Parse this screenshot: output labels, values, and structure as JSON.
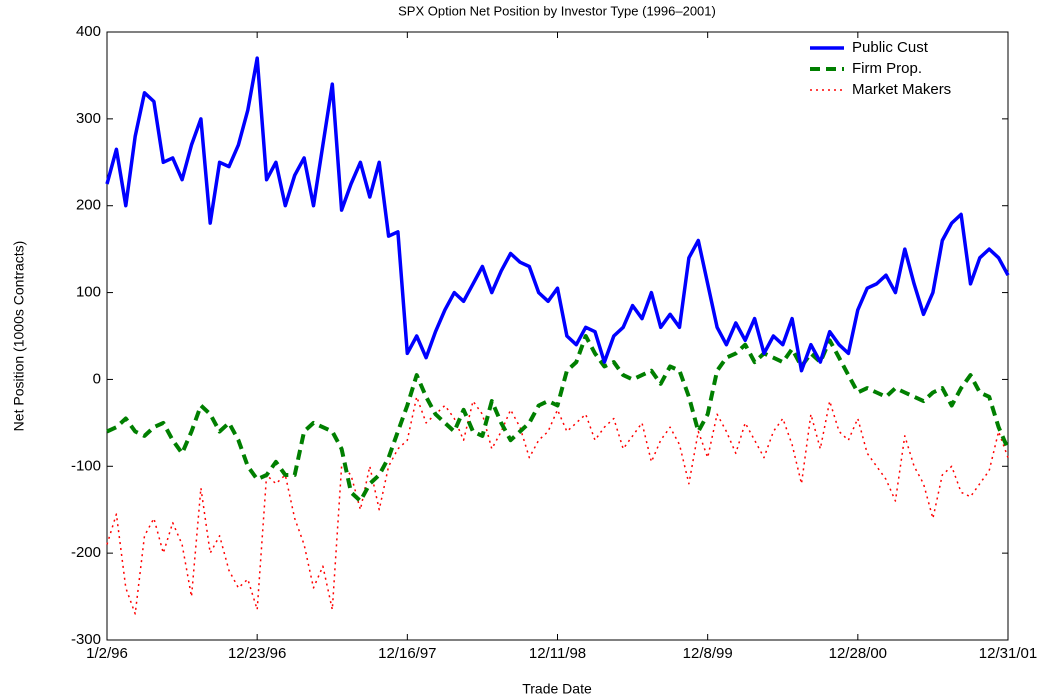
{
  "chart_data": {
    "type": "line",
    "title": "SPX Option Net Position by Investor Type (1996–2001)",
    "x_label": "Trade Date",
    "y_label": "Net Position (1000s Contracts)",
    "categories": [
      "1/2/96",
      null,
      null,
      null,
      null,
      null,
      null,
      null,
      null,
      null,
      null,
      null,
      null,
      null,
      null,
      null,
      "12/23/96",
      null,
      null,
      null,
      null,
      null,
      null,
      null,
      null,
      null,
      null,
      null,
      null,
      null,
      null,
      null,
      "12/16/97",
      null,
      null,
      null,
      null,
      null,
      null,
      null,
      null,
      null,
      null,
      null,
      null,
      null,
      null,
      null,
      "12/11/98",
      null,
      null,
      null,
      null,
      null,
      null,
      null,
      null,
      null,
      null,
      null,
      null,
      null,
      null,
      null,
      "12/8/99",
      null,
      null,
      null,
      null,
      null,
      null,
      null,
      null,
      null,
      null,
      null,
      null,
      null,
      null,
      null,
      "12/28/00",
      null,
      null,
      null,
      null,
      null,
      null,
      null,
      null,
      null,
      null,
      null,
      null,
      null,
      null,
      null,
      "12/31/01"
    ],
    "series": [
      {
        "name": "Public Cust",
        "color": "#0000ff",
        "linestyle": "solid",
        "values": [
          225,
          265,
          200,
          280,
          330,
          320,
          250,
          255,
          230,
          270,
          300,
          180,
          250,
          245,
          270,
          310,
          370,
          230,
          250,
          200,
          235,
          255,
          200,
          270,
          340,
          195,
          225,
          250,
          210,
          250,
          165,
          170,
          30,
          50,
          25,
          55,
          80,
          100,
          90,
          110,
          130,
          100,
          125,
          145,
          135,
          130,
          100,
          90,
          105,
          50,
          40,
          60,
          55,
          20,
          50,
          60,
          85,
          70,
          100,
          60,
          75,
          60,
          140,
          160,
          110,
          60,
          40,
          65,
          45,
          70,
          30,
          50,
          40,
          70,
          10,
          40,
          20,
          55,
          40,
          30,
          80,
          105,
          110,
          120,
          100,
          150,
          110,
          75,
          100,
          160,
          180,
          190,
          110,
          140,
          150,
          140,
          120
        ]
      },
      {
        "name": "Firm Prop.",
        "color": "#007f00",
        "linestyle": "dashed",
        "values": [
          -60,
          -55,
          -45,
          -60,
          -65,
          -55,
          -50,
          -70,
          -85,
          -60,
          -30,
          -40,
          -60,
          -50,
          -70,
          -100,
          -115,
          -110,
          -95,
          -110,
          -110,
          -60,
          -50,
          -55,
          -60,
          -80,
          -130,
          -140,
          -120,
          -110,
          -90,
          -60,
          -30,
          5,
          -20,
          -40,
          -50,
          -60,
          -35,
          -60,
          -65,
          -25,
          -50,
          -70,
          -60,
          -50,
          -30,
          -25,
          -30,
          10,
          20,
          50,
          30,
          15,
          20,
          5,
          0,
          5,
          10,
          -5,
          15,
          10,
          -20,
          -60,
          -40,
          10,
          25,
          30,
          40,
          20,
          30,
          25,
          20,
          35,
          15,
          30,
          20,
          45,
          25,
          5,
          -15,
          -10,
          -15,
          -20,
          -10,
          -15,
          -20,
          -25,
          -15,
          -10,
          -30,
          -10,
          5,
          -15,
          -20,
          -55,
          -80
        ]
      },
      {
        "name": "Market Makers",
        "color": "#ff0000",
        "linestyle": "dotted",
        "values": [
          -190,
          -155,
          -240,
          -270,
          -180,
          -160,
          -200,
          -165,
          -190,
          -250,
          -125,
          -200,
          -180,
          -220,
          -240,
          -230,
          -265,
          -110,
          -120,
          -110,
          -160,
          -190,
          -240,
          -215,
          -265,
          -100,
          -110,
          -150,
          -100,
          -150,
          -100,
          -80,
          -70,
          -20,
          -50,
          -40,
          -30,
          -45,
          -70,
          -25,
          -40,
          -80,
          -60,
          -35,
          -55,
          -90,
          -70,
          -60,
          -35,
          -60,
          -50,
          -40,
          -70,
          -55,
          -45,
          -80,
          -65,
          -50,
          -95,
          -70,
          -55,
          -75,
          -120,
          -60,
          -90,
          -40,
          -60,
          -85,
          -50,
          -70,
          -90,
          -60,
          -45,
          -75,
          -120,
          -40,
          -80,
          -25,
          -60,
          -70,
          -45,
          -85,
          -100,
          -115,
          -140,
          -65,
          -100,
          -120,
          -160,
          -110,
          -100,
          -130,
          -135,
          -120,
          -105,
          -60,
          -90
        ]
      }
    ],
    "ylim": [
      -300,
      400
    ],
    "yticks": [
      -300,
      -200,
      -100,
      0,
      100,
      200,
      300,
      400
    ],
    "grid": false,
    "legend": "upper right"
  }
}
